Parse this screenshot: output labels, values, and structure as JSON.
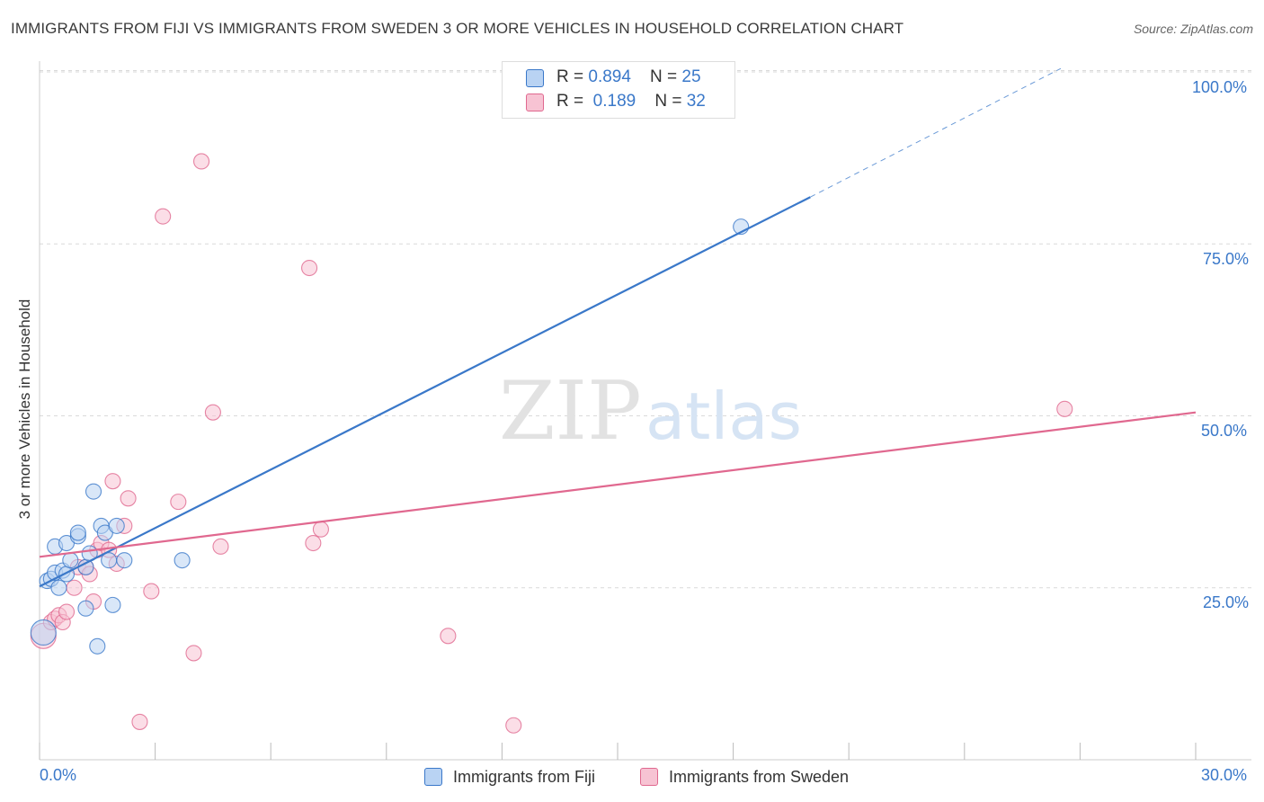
{
  "header": {
    "title": "IMMIGRANTS FROM FIJI VS IMMIGRANTS FROM SWEDEN 3 OR MORE VEHICLES IN HOUSEHOLD CORRELATION CHART",
    "source": "Source: ZipAtlas.com"
  },
  "watermark": {
    "zip": "ZIP",
    "atlas": "atlas"
  },
  "legend_top": {
    "fiji": {
      "r_label": "R = ",
      "r_value": "0.894",
      "n_label": "N = ",
      "n_value": "25"
    },
    "sweden": {
      "r_label": "R = ",
      "r_value": "0.189",
      "n_label": "N = ",
      "n_value": "32"
    }
  },
  "colors": {
    "fiji": "#3a78c9",
    "fiji_fill": "#b9d3f3",
    "sweden": "#e0688f",
    "sweden_fill": "#f7c3d3",
    "grid": "#d9d9d9",
    "axis_text": "#3a78c9"
  },
  "chart_data": {
    "type": "scatter",
    "title": "IMMIGRANTS FROM FIJI VS IMMIGRANTS FROM SWEDEN 3 OR MORE VEHICLES IN HOUSEHOLD CORRELATION CHART",
    "xlabel": "",
    "ylabel": "3 or more Vehicles in Household",
    "xlim": [
      0,
      30
    ],
    "ylim": [
      0,
      102
    ],
    "x_tick_labels": [
      "0.0%",
      "30.0%"
    ],
    "y_ticks": [
      25,
      50,
      75,
      100
    ],
    "y_tick_labels": [
      "25.0%",
      "50.0%",
      "75.0%",
      "100.0%"
    ],
    "grid": true,
    "legend_position": "bottom-center",
    "series": [
      {
        "name": "Immigrants from Fiji",
        "points": [
          [
            0.1,
            18.5
          ],
          [
            0.2,
            26
          ],
          [
            0.3,
            26.3
          ],
          [
            0.4,
            27.2
          ],
          [
            0.5,
            25
          ],
          [
            0.4,
            31
          ],
          [
            0.6,
            27.5
          ],
          [
            0.7,
            27
          ],
          [
            0.7,
            31.5
          ],
          [
            0.8,
            29
          ],
          [
            1.0,
            32.5
          ],
          [
            1.0,
            33
          ],
          [
            1.2,
            22
          ],
          [
            1.2,
            28
          ],
          [
            1.3,
            30
          ],
          [
            1.4,
            39
          ],
          [
            1.5,
            16.5
          ],
          [
            1.6,
            34
          ],
          [
            1.7,
            33
          ],
          [
            1.8,
            29
          ],
          [
            1.9,
            22.5
          ],
          [
            2.0,
            34
          ],
          [
            2.2,
            29
          ],
          [
            3.7,
            29
          ],
          [
            18.2,
            77.5
          ]
        ],
        "trend": {
          "x0": 0,
          "y0": 25.2,
          "x1": 20,
          "y1": 81.8,
          "dashed_to_x": 26.5,
          "dashed_to_y": 100.5
        }
      },
      {
        "name": "Immigrants from Sweden",
        "points": [
          [
            0.1,
            18
          ],
          [
            0.3,
            20
          ],
          [
            0.4,
            20.5
          ],
          [
            0.5,
            21
          ],
          [
            0.6,
            20
          ],
          [
            0.7,
            21.5
          ],
          [
            0.9,
            25
          ],
          [
            1.0,
            28
          ],
          [
            1.2,
            28
          ],
          [
            1.3,
            27
          ],
          [
            1.4,
            23
          ],
          [
            1.5,
            30.5
          ],
          [
            1.6,
            31.5
          ],
          [
            1.8,
            30.5
          ],
          [
            1.9,
            40.5
          ],
          [
            2.0,
            28.5
          ],
          [
            2.2,
            34
          ],
          [
            2.3,
            38
          ],
          [
            2.6,
            5.5
          ],
          [
            2.9,
            24.5
          ],
          [
            3.2,
            79
          ],
          [
            3.6,
            37.5
          ],
          [
            4.0,
            15.5
          ],
          [
            4.2,
            87
          ],
          [
            4.5,
            50.5
          ],
          [
            4.7,
            31
          ],
          [
            7.0,
            71.5
          ],
          [
            7.1,
            31.5
          ],
          [
            7.3,
            33.5
          ],
          [
            10.6,
            18
          ],
          [
            12.3,
            5
          ],
          [
            26.6,
            51
          ]
        ],
        "trend": {
          "x0": 0,
          "y0": 29.5,
          "x1": 30,
          "y1": 50.5
        }
      }
    ]
  }
}
